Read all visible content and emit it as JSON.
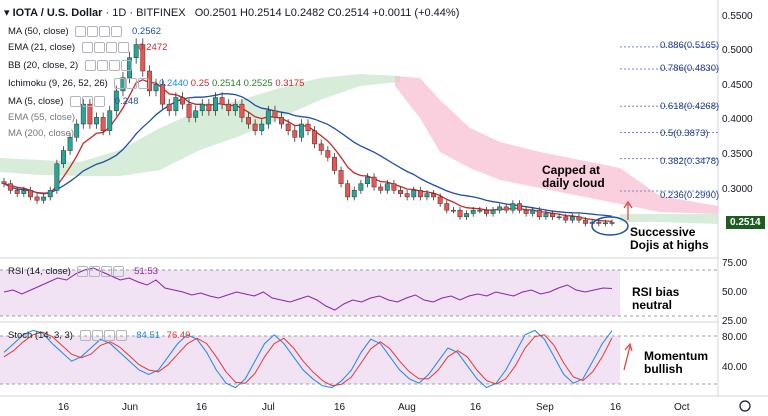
{
  "header": {
    "symbol": "IOTA / U.S. Dollar",
    "timeframe": "1D",
    "exchange": "BITFINEX",
    "ohlc": "O0.2501 H0.2514 L0.2482 C0.2514 +0.0011 (+0.44%)"
  },
  "indicators": {
    "ma50": {
      "label": "MA (50, close)",
      "value": "0.2562",
      "color": "#1e4fa3"
    },
    "ema21": {
      "label": "EMA (21, close)",
      "value": "0.2472",
      "color": "#c62828"
    },
    "bb": {
      "label": "BB (20, close, 2)"
    },
    "ichimoku": {
      "label": "Ichimoku (9, 26, 52, 26)",
      "values": [
        "0.2440",
        "0.25",
        "0.2514",
        "0.2525",
        "0.3175"
      ]
    },
    "ma5": {
      "label": "MA (5, close)",
      "value": "0.248"
    },
    "ema55": {
      "label": "EMA (55, close)"
    },
    "ma200": {
      "label": "MA (200, close)"
    }
  },
  "rsi": {
    "label": "RSI (14, close)",
    "value": "51.53"
  },
  "stoch": {
    "label": "Stoch (14, 3, 3)",
    "k": "84.51",
    "d": "76.49"
  },
  "price_tag": "0.2514",
  "annotations": {
    "capped": [
      "Capped at",
      "daily cloud"
    ],
    "dojis": [
      "Successive",
      "Dojis at highs"
    ],
    "rsi": [
      "RSI bias",
      "neutral"
    ],
    "momentum": [
      "Momentum",
      "bullish"
    ]
  },
  "fib_levels": [
    {
      "ratio": "0.886(0.5165)",
      "price": 0.5165
    },
    {
      "ratio": "0.786(0.4830)",
      "price": 0.483
    },
    {
      "ratio": "0.618(0.4268)",
      "price": 0.4268
    },
    {
      "ratio": "0.5(0.3873)",
      "price": 0.3873
    },
    {
      "ratio": "0.382(0.3478)",
      "price": 0.3478
    },
    {
      "ratio": "0.236(0.2990)",
      "price": 0.299
    }
  ],
  "axis": {
    "price_ticks": [
      "0.5500",
      "0.5000",
      "0.4500",
      "0.4000",
      "0.3500",
      "0.3000"
    ],
    "rsi_ticks": [
      "75.00",
      "50.00",
      "25.00"
    ],
    "stoch_ticks": [
      "80.00",
      "40.00"
    ],
    "date_ticks": [
      "16",
      "Jun",
      "16",
      "Jul",
      "16",
      "Aug",
      "16",
      "Sep",
      "16",
      "Oct"
    ]
  },
  "chart_data": {
    "type": "candlestick",
    "price_range": [
      0.225,
      0.56
    ],
    "closes": [
      0.31,
      0.3,
      0.295,
      0.3,
      0.29,
      0.285,
      0.29,
      0.3,
      0.34,
      0.36,
      0.38,
      0.4,
      0.43,
      0.4,
      0.41,
      0.39,
      0.42,
      0.45,
      0.47,
      0.5,
      0.52,
      0.48,
      0.45,
      0.46,
      0.43,
      0.42,
      0.44,
      0.43,
      0.41,
      0.42,
      0.43,
      0.42,
      0.44,
      0.43,
      0.42,
      0.43,
      0.41,
      0.4,
      0.39,
      0.4,
      0.42,
      0.41,
      0.4,
      0.39,
      0.38,
      0.4,
      0.39,
      0.37,
      0.36,
      0.35,
      0.33,
      0.31,
      0.29,
      0.3,
      0.31,
      0.32,
      0.305,
      0.3,
      0.31,
      0.3,
      0.295,
      0.29,
      0.3,
      0.29,
      0.295,
      0.29,
      0.28,
      0.27,
      0.27,
      0.26,
      0.265,
      0.27,
      0.27,
      0.265,
      0.27,
      0.275,
      0.27,
      0.28,
      0.27,
      0.265,
      0.27,
      0.26,
      0.265,
      0.26,
      0.26,
      0.255,
      0.26,
      0.255,
      0.25,
      0.252,
      0.25,
      0.251,
      0.2514
    ],
    "rsi_range": [
      20,
      78
    ],
    "rsi_values": [
      48,
      50,
      46,
      50,
      54,
      58,
      62,
      60,
      66,
      70,
      72,
      68,
      64,
      60,
      62,
      58,
      55,
      60,
      52,
      50,
      48,
      45,
      47,
      44,
      42,
      45,
      48,
      46,
      44,
      48,
      42,
      40,
      38,
      41,
      44,
      40,
      34,
      30,
      36,
      40,
      38,
      42,
      44,
      40,
      38,
      42,
      45,
      40,
      38,
      42,
      44,
      40,
      44,
      46,
      44,
      48,
      46,
      44,
      48,
      50,
      46,
      48,
      52,
      55,
      50,
      48,
      50,
      52,
      51.53
    ],
    "stoch_range": [
      15,
      90
    ],
    "stoch_k": [
      60,
      70,
      80,
      85,
      82,
      70,
      60,
      50,
      55,
      65,
      75,
      70,
      60,
      50,
      40,
      35,
      40,
      55,
      70,
      80,
      75,
      60,
      40,
      25,
      20,
      30,
      50,
      70,
      80,
      70,
      55,
      40,
      30,
      22,
      20,
      28,
      40,
      60,
      75,
      70,
      55,
      40,
      30,
      25,
      35,
      50,
      65,
      60,
      45,
      30,
      20,
      25,
      40,
      60,
      80,
      85,
      75,
      55,
      35,
      25,
      30,
      50,
      70,
      84.51
    ],
    "stoch_d": [
      55,
      62,
      72,
      80,
      83,
      78,
      68,
      58,
      54,
      58,
      68,
      72,
      66,
      56,
      46,
      40,
      38,
      46,
      58,
      70,
      76,
      70,
      55,
      38,
      26,
      25,
      36,
      55,
      70,
      76,
      65,
      50,
      38,
      28,
      22,
      24,
      32,
      48,
      64,
      72,
      64,
      50,
      38,
      30,
      30,
      40,
      55,
      62,
      55,
      40,
      28,
      24,
      30,
      45,
      65,
      78,
      80,
      68,
      48,
      32,
      28,
      38,
      55,
      76.49
    ]
  }
}
